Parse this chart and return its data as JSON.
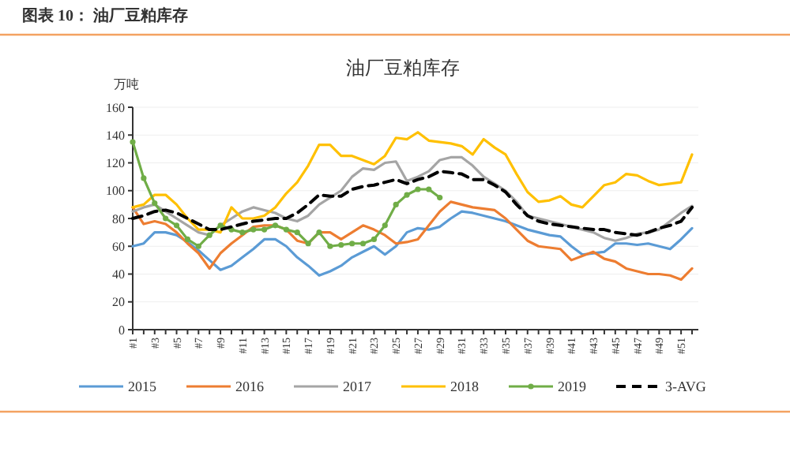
{
  "chart_data": {
    "type": "line",
    "title": "图表 10：  油厂豆粕库存",
    "subtitle": "油厂豆粕库存",
    "ylabel": "万吨",
    "categories": [
      "#1",
      null,
      "#3",
      null,
      "#5",
      null,
      "#7",
      null,
      "#9",
      null,
      "#11",
      null,
      "#13",
      null,
      "#15",
      null,
      "#17",
      null,
      "#19",
      null,
      "#21",
      null,
      "#23",
      null,
      "#25",
      null,
      "#27",
      null,
      "#29",
      null,
      "#31",
      null,
      "#33",
      null,
      "#35",
      null,
      "#37",
      null,
      "#39",
      null,
      "#41",
      null,
      "#43",
      null,
      "#45",
      null,
      "#47",
      null,
      "#49",
      null,
      "#51",
      null
    ],
    "ylim": [
      0,
      160
    ],
    "yticks": [
      0,
      20,
      40,
      60,
      80,
      100,
      120,
      140,
      160
    ],
    "grid": "y",
    "legend": "bottom",
    "marker": "none",
    "line_style": "solid",
    "series": [
      {
        "name": "2015",
        "color": "#5b9bd5",
        "values": [
          60,
          62,
          70,
          70,
          68,
          63,
          57,
          50,
          43,
          46,
          52,
          58,
          65,
          65,
          60,
          52,
          46,
          39,
          42,
          46,
          52,
          56,
          60,
          54,
          60,
          70,
          73,
          72,
          74,
          80,
          85,
          84,
          82,
          80,
          78,
          75,
          72,
          70,
          68,
          67,
          60,
          54,
          55,
          56,
          62,
          62,
          61,
          62,
          60,
          58,
          65,
          73
        ]
      },
      {
        "name": "2016",
        "color": "#ed7d31",
        "values": [
          88,
          76,
          78,
          76,
          70,
          62,
          55,
          44,
          55,
          62,
          68,
          74,
          75,
          75,
          72,
          64,
          62,
          70,
          70,
          65,
          70,
          75,
          72,
          68,
          62,
          63,
          65,
          75,
          85,
          92,
          90,
          88,
          87,
          86,
          80,
          72,
          64,
          60,
          59,
          58,
          50,
          53,
          56,
          51,
          49,
          44,
          42,
          40,
          40,
          39,
          36,
          44
        ]
      },
      {
        "name": "2017",
        "color": "#a5a5a5",
        "values": [
          85,
          88,
          90,
          85,
          80,
          75,
          70,
          68,
          75,
          80,
          85,
          88,
          86,
          84,
          80,
          78,
          82,
          90,
          95,
          100,
          110,
          116,
          115,
          120,
          121,
          107,
          110,
          114,
          122,
          124,
          124,
          118,
          110,
          105,
          100,
          92,
          82,
          80,
          78,
          76,
          74,
          72,
          70,
          66,
          64,
          66,
          69,
          70,
          72,
          78,
          84,
          89
        ]
      },
      {
        "name": "2018",
        "color": "#ffc000",
        "values": [
          88,
          90,
          97,
          97,
          90,
          80,
          72,
          72,
          70,
          88,
          80,
          80,
          82,
          88,
          98,
          106,
          118,
          133,
          133,
          125,
          125,
          122,
          119,
          125,
          138,
          137,
          142,
          136,
          135,
          134,
          132,
          126,
          137,
          131,
          126,
          112,
          99,
          92,
          93,
          96,
          90,
          88,
          96,
          104,
          106,
          112,
          111,
          107,
          104,
          105,
          106,
          126
        ]
      },
      {
        "name": "2019",
        "color": "#70ad47",
        "marker": "circle",
        "values": [
          135,
          109,
          91,
          80,
          75,
          65,
          60,
          68,
          75,
          72,
          70,
          72,
          72,
          75,
          72,
          70,
          62,
          70,
          60,
          61,
          62,
          62,
          65,
          75,
          90,
          97,
          101,
          101,
          95,
          null,
          null,
          null,
          null,
          null,
          null,
          null,
          null,
          null,
          null,
          null,
          null,
          null,
          null,
          null,
          null,
          null,
          null,
          null,
          null,
          null,
          null,
          null
        ]
      },
      {
        "name": "3-AVG",
        "color": "#000000",
        "line_style": "dashed",
        "values": [
          80,
          82,
          85,
          86,
          84,
          80,
          76,
          72,
          72,
          74,
          76,
          78,
          79,
          80,
          80,
          84,
          90,
          97,
          96,
          96,
          101,
          103,
          104,
          106,
          108,
          105,
          108,
          110,
          114,
          113,
          112,
          108,
          108,
          104,
          99,
          90,
          82,
          78,
          76,
          75,
          74,
          73,
          72,
          72,
          70,
          69,
          68,
          70,
          73,
          75,
          78,
          88
        ]
      }
    ]
  }
}
